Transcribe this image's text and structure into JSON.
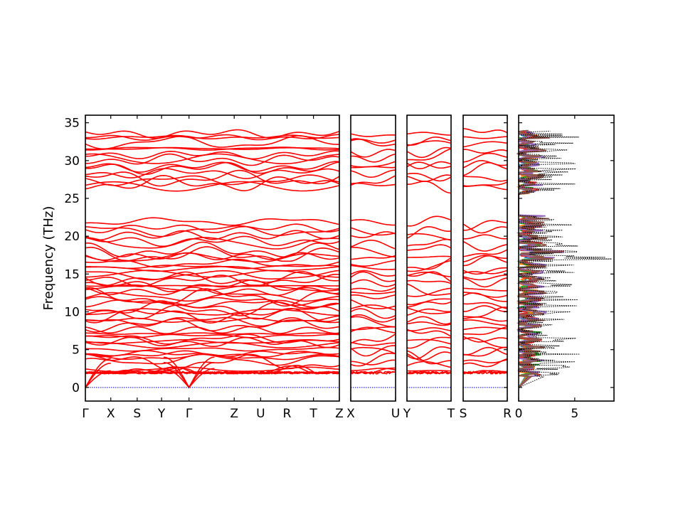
{
  "chart_data": [
    {
      "type": "line",
      "panel": "band-structure",
      "ylabel": "Frequency (THz)",
      "ylim": [
        -1.8,
        36
      ],
      "yticks": [
        0,
        5,
        10,
        15,
        20,
        25,
        30,
        35
      ],
      "segments": [
        {
          "start": "Γ",
          "end": "Z",
          "labels": [
            "Γ",
            "X",
            "S",
            "Y",
            "Γ",
            "Z",
            "U",
            "R",
            "T",
            "Z"
          ],
          "label_pos": [
            0,
            0.1,
            0.204,
            0.3,
            0.408,
            0.586,
            0.69,
            0.794,
            0.898,
            1
          ]
        },
        {
          "start": "X",
          "end": "U",
          "labels": [
            "X",
            "U"
          ],
          "label_pos": [
            0,
            1
          ]
        },
        {
          "start": "Y",
          "end": "T",
          "labels": [
            "Y",
            "T"
          ],
          "label_pos": [
            0,
            1
          ]
        },
        {
          "start": "S",
          "end": "R",
          "labels": [
            "S",
            "R"
          ],
          "label_pos": [
            0,
            1
          ]
        }
      ],
      "band_color": "#ff0000",
      "zero_line_color": "#0000cc",
      "band_groups": [
        {
          "range": [
            0,
            17.5
          ],
          "approx_count": 44
        },
        {
          "range": [
            17.5,
            22.2
          ],
          "approx_count": 8
        },
        {
          "range": [
            26.2,
            34
          ],
          "approx_count": 16
        }
      ]
    },
    {
      "type": "line",
      "panel": "dos",
      "xticks": [
        0,
        5
      ],
      "xlim": [
        0,
        8.5
      ],
      "ylim": [
        -1.8,
        36
      ],
      "series_colors": [
        "#1f77b4",
        "#ff7f0e",
        "#2ca02c",
        "#d62728",
        "#9467bd",
        "#8c564b"
      ],
      "total_color": "#000000"
    }
  ]
}
